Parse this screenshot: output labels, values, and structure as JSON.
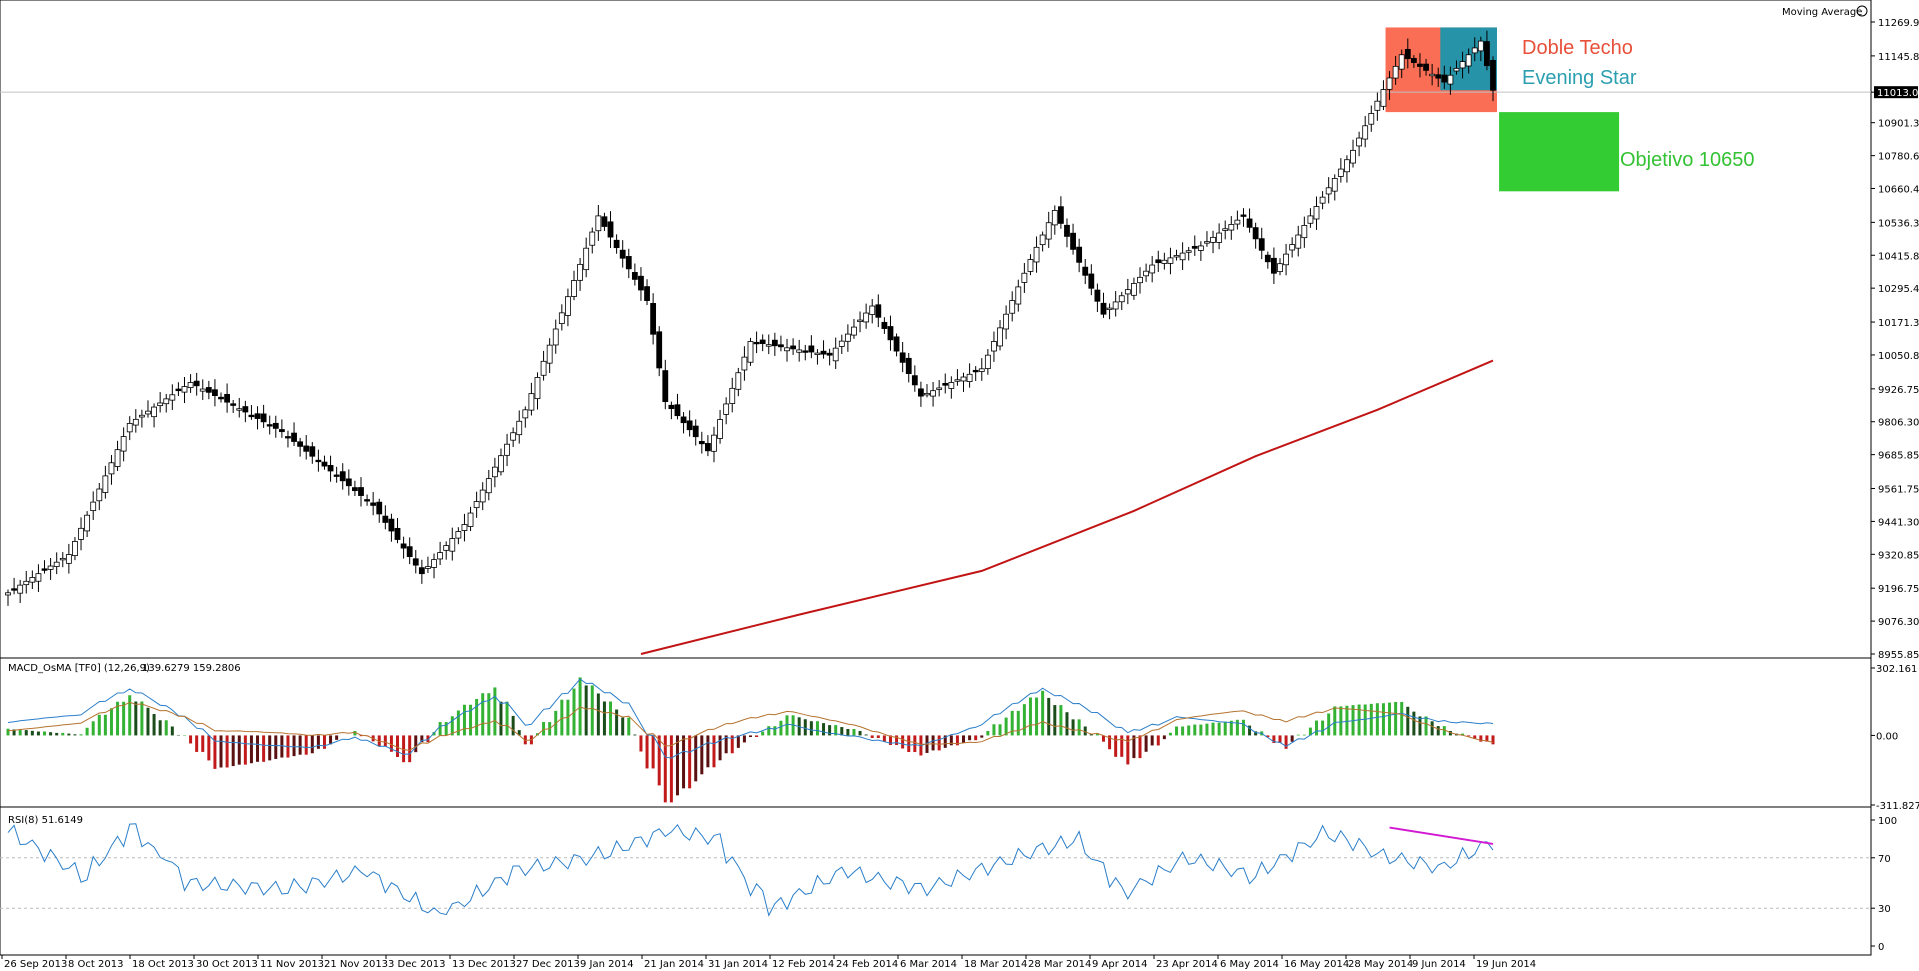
{
  "chart_data": [
    {
      "type": "candlestick",
      "panel": "price",
      "indicator_name": "Moving Average",
      "ylim": [
        8955.85,
        11269.95
      ],
      "y_ticks": [
        "11269.95",
        "11145.85",
        "11013.00",
        "10901.30",
        "10780.60",
        "10660.40",
        "10536.30",
        "10415.85",
        "10295.40",
        "10171.30",
        "10050.85",
        "9926.75",
        "9806.30",
        "9685.85",
        "9561.75",
        "9441.30",
        "9320.85",
        "9196.75",
        "9076.30",
        "8955.85"
      ],
      "current_price": "11013.00",
      "key_points": [
        {
          "x": 0,
          "close": 9180
        },
        {
          "x": 10,
          "close": 9320
        },
        {
          "x": 20,
          "close": 9800
        },
        {
          "x": 30,
          "close": 9950
        },
        {
          "x": 45,
          "close": 9770
        },
        {
          "x": 60,
          "close": 9500
        },
        {
          "x": 68,
          "close": 9250
        },
        {
          "x": 75,
          "close": 9430
        },
        {
          "x": 85,
          "close": 9850
        },
        {
          "x": 97,
          "close": 10560
        },
        {
          "x": 105,
          "close": 10250
        },
        {
          "x": 108,
          "close": 9880
        },
        {
          "x": 115,
          "close": 9700
        },
        {
          "x": 122,
          "close": 10100
        },
        {
          "x": 135,
          "close": 10050
        },
        {
          "x": 142,
          "close": 10230
        },
        {
          "x": 150,
          "close": 9900
        },
        {
          "x": 160,
          "close": 10000
        },
        {
          "x": 168,
          "close": 10400
        },
        {
          "x": 172,
          "close": 10580
        },
        {
          "x": 180,
          "close": 10200
        },
        {
          "x": 188,
          "close": 10380
        },
        {
          "x": 196,
          "close": 10450
        },
        {
          "x": 203,
          "close": 10560
        },
        {
          "x": 208,
          "close": 10350
        },
        {
          "x": 214,
          "close": 10560
        },
        {
          "x": 221,
          "close": 10800
        },
        {
          "x": 225,
          "close": 10980
        },
        {
          "x": 229,
          "close": 11150
        },
        {
          "x": 236,
          "close": 11050
        },
        {
          "x": 242,
          "close": 11200
        },
        {
          "x": 244,
          "close": 11020
        }
      ],
      "ma_points": [
        {
          "x": 104,
          "y": 8955.85
        },
        {
          "x": 130,
          "y": 9100
        },
        {
          "x": 160,
          "y": 9260
        },
        {
          "x": 185,
          "y": 9480
        },
        {
          "x": 205,
          "y": 9680
        },
        {
          "x": 225,
          "y": 9850
        },
        {
          "x": 244,
          "y": 10030
        }
      ],
      "annotations": [
        {
          "text": "Doble Techo",
          "color": "#e8503a"
        },
        {
          "text": "Evening Star",
          "color": "#2b9fb0"
        },
        {
          "text": "Objetivo 10650",
          "color": "#33c233"
        }
      ],
      "colors": {
        "ma": "#c21414",
        "double_top_box": "#fa6e56",
        "evening_star_box": "#2693a8",
        "target_box": "#33cc33",
        "bull_body": "#ffffff",
        "bear_body": "#000000"
      }
    },
    {
      "type": "bar",
      "panel": "macd",
      "header": "MACD_OsMA [TF0] (12,26,9)",
      "values_text": "139.6279 159.2806",
      "ylim": [
        -311.8279,
        302.161
      ],
      "y_ticks": [
        "302.161",
        "0.00",
        "-311.8279"
      ],
      "key_points": [
        {
          "x": 0,
          "hist": 30
        },
        {
          "x": 8,
          "hist": 5
        },
        {
          "x": 14,
          "hist": 180
        },
        {
          "x": 19,
          "hist": 40
        },
        {
          "x": 24,
          "hist": -150
        },
        {
          "x": 35,
          "hist": -80
        },
        {
          "x": 40,
          "hist": 20
        },
        {
          "x": 46,
          "hist": -120
        },
        {
          "x": 50,
          "hist": 60
        },
        {
          "x": 56,
          "hist": 215
        },
        {
          "x": 60,
          "hist": -40
        },
        {
          "x": 66,
          "hist": 260
        },
        {
          "x": 71,
          "hist": 80
        },
        {
          "x": 76,
          "hist": -300
        },
        {
          "x": 83,
          "hist": -80
        },
        {
          "x": 90,
          "hist": 90
        },
        {
          "x": 98,
          "hist": 20
        },
        {
          "x": 105,
          "hist": -90
        },
        {
          "x": 112,
          "hist": -10
        },
        {
          "x": 119,
          "hist": 200
        },
        {
          "x": 124,
          "hist": 40
        },
        {
          "x": 129,
          "hist": -130
        },
        {
          "x": 135,
          "hist": 40
        },
        {
          "x": 142,
          "hist": 70
        },
        {
          "x": 147,
          "hist": -60
        },
        {
          "x": 153,
          "hist": 130
        },
        {
          "x": 160,
          "hist": 150
        },
        {
          "x": 166,
          "hist": 20
        },
        {
          "x": 171,
          "hist": -40
        }
      ],
      "colors": {
        "up": "#33b233",
        "down": "#c21a1a",
        "macd_line": "#2a7ec9",
        "signal_line": "#b5732f"
      }
    },
    {
      "type": "line",
      "panel": "rsi",
      "header": "RSI(8) 51.6149",
      "ylim": [
        0,
        100
      ],
      "y_ticks": [
        "100",
        "70",
        "30",
        "0"
      ],
      "levels": [
        70,
        30
      ],
      "key_points": [
        {
          "x": 0,
          "rsi": 90
        },
        {
          "x": 6,
          "rsi": 55
        },
        {
          "x": 10,
          "rsi": 95
        },
        {
          "x": 14,
          "rsi": 50
        },
        {
          "x": 22,
          "rsi": 45
        },
        {
          "x": 28,
          "rsi": 60
        },
        {
          "x": 34,
          "rsi": 25
        },
        {
          "x": 40,
          "rsi": 60
        },
        {
          "x": 46,
          "rsi": 70
        },
        {
          "x": 52,
          "rsi": 92
        },
        {
          "x": 56,
          "rsi": 85
        },
        {
          "x": 60,
          "rsi": 30
        },
        {
          "x": 66,
          "rsi": 60
        },
        {
          "x": 72,
          "rsi": 45
        },
        {
          "x": 78,
          "rsi": 65
        },
        {
          "x": 84,
          "rsi": 85
        },
        {
          "x": 88,
          "rsi": 42
        },
        {
          "x": 93,
          "rsi": 70
        },
        {
          "x": 98,
          "rsi": 55
        },
        {
          "x": 104,
          "rsi": 90
        },
        {
          "x": 108,
          "rsi": 72
        },
        {
          "x": 113,
          "rsi": 62
        },
        {
          "x": 117,
          "rsi": 82
        }
      ],
      "divergence_color": "#d21ad2"
    }
  ],
  "x_ticks": [
    "26 Sep 2013",
    "8 Oct 2013",
    "18 Oct 2013",
    "30 Oct 2013",
    "11 Nov 2013",
    "21 Nov 2013",
    "3 Dec 2013",
    "13 Dec 2013",
    "27 Dec 2013",
    "9 Jan 2014",
    "21 Jan 2014",
    "31 Jan 2014",
    "12 Feb 2014",
    "24 Feb 2014",
    "6 Mar 2014",
    "18 Mar 2014",
    "28 Mar 2014",
    "9 Apr 2014",
    "23 Apr 2014",
    "6 May 2014",
    "16 May 2014",
    "28 May 2014",
    "9 Jun 2014",
    "19 Jun 2014"
  ]
}
